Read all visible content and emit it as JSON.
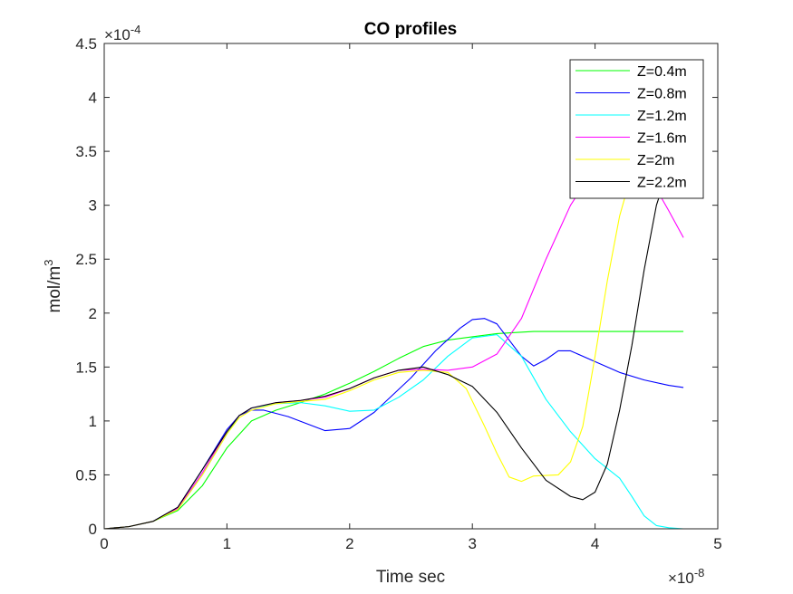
{
  "chart_data": {
    "type": "line",
    "title": "CO profiles",
    "xlabel": "Time sec",
    "ylabel": "mol/m",
    "ylabel_superscript": "3",
    "x_exponent_label": "×10",
    "x_exponent_power": "-8",
    "y_exponent_label": "×10",
    "y_exponent_power": "-4",
    "xlim": [
      0,
      5
    ],
    "ylim": [
      0,
      4.5
    ],
    "x_ticks": [
      0,
      1,
      2,
      3,
      4,
      5
    ],
    "x_tick_labels": [
      "0",
      "1",
      "2",
      "3",
      "4",
      "5"
    ],
    "y_ticks": [
      0,
      0.5,
      1,
      1.5,
      2,
      2.5,
      3,
      3.5,
      4,
      4.5
    ],
    "y_tick_labels": [
      "0",
      "0.5",
      "1",
      "1.5",
      "2",
      "2.5",
      "3",
      "3.5",
      "4",
      "4.5"
    ],
    "grid": false,
    "legend_position": "top-right",
    "series": [
      {
        "name": "Z=0.4m",
        "color": "#00ff00",
        "points": [
          [
            0,
            0
          ],
          [
            0.2,
            0.02
          ],
          [
            0.4,
            0.07
          ],
          [
            0.6,
            0.17
          ],
          [
            0.8,
            0.4
          ],
          [
            1.0,
            0.75
          ],
          [
            1.2,
            1.0
          ],
          [
            1.4,
            1.1
          ],
          [
            1.6,
            1.17
          ],
          [
            1.8,
            1.25
          ],
          [
            2.0,
            1.35
          ],
          [
            2.2,
            1.46
          ],
          [
            2.4,
            1.58
          ],
          [
            2.6,
            1.69
          ],
          [
            2.8,
            1.75
          ],
          [
            3.0,
            1.78
          ],
          [
            3.2,
            1.81
          ],
          [
            3.5,
            1.83
          ],
          [
            4.0,
            1.83
          ],
          [
            4.5,
            1.83
          ],
          [
            4.72,
            1.83
          ]
        ]
      },
      {
        "name": "Z=0.8m",
        "color": "#0000ff",
        "points": [
          [
            0,
            0
          ],
          [
            0.2,
            0.02
          ],
          [
            0.4,
            0.07
          ],
          [
            0.6,
            0.2
          ],
          [
            0.8,
            0.55
          ],
          [
            1.0,
            0.92
          ],
          [
            1.1,
            1.05
          ],
          [
            1.2,
            1.1
          ],
          [
            1.3,
            1.1
          ],
          [
            1.5,
            1.04
          ],
          [
            1.8,
            0.91
          ],
          [
            2.0,
            0.93
          ],
          [
            2.2,
            1.08
          ],
          [
            2.5,
            1.4
          ],
          [
            2.7,
            1.65
          ],
          [
            2.9,
            1.86
          ],
          [
            3.0,
            1.94
          ],
          [
            3.1,
            1.95
          ],
          [
            3.2,
            1.9
          ],
          [
            3.3,
            1.75
          ],
          [
            3.4,
            1.6
          ],
          [
            3.5,
            1.51
          ],
          [
            3.6,
            1.57
          ],
          [
            3.7,
            1.65
          ],
          [
            3.8,
            1.65
          ],
          [
            4.0,
            1.55
          ],
          [
            4.2,
            1.45
          ],
          [
            4.4,
            1.38
          ],
          [
            4.6,
            1.33
          ],
          [
            4.72,
            1.31
          ]
        ]
      },
      {
        "name": "Z=1.2m",
        "color": "#00ffff",
        "points": [
          [
            0,
            0
          ],
          [
            0.2,
            0.02
          ],
          [
            0.4,
            0.07
          ],
          [
            0.6,
            0.18
          ],
          [
            0.8,
            0.5
          ],
          [
            1.0,
            0.88
          ],
          [
            1.1,
            1.05
          ],
          [
            1.2,
            1.12
          ],
          [
            1.4,
            1.16
          ],
          [
            1.6,
            1.17
          ],
          [
            1.8,
            1.14
          ],
          [
            2.0,
            1.09
          ],
          [
            2.2,
            1.1
          ],
          [
            2.4,
            1.22
          ],
          [
            2.6,
            1.38
          ],
          [
            2.8,
            1.6
          ],
          [
            3.0,
            1.77
          ],
          [
            3.2,
            1.8
          ],
          [
            3.4,
            1.6
          ],
          [
            3.6,
            1.2
          ],
          [
            3.8,
            0.9
          ],
          [
            4.0,
            0.65
          ],
          [
            4.2,
            0.47
          ],
          [
            4.3,
            0.3
          ],
          [
            4.4,
            0.12
          ],
          [
            4.5,
            0.03
          ],
          [
            4.6,
            0.01
          ],
          [
            4.72,
            0
          ]
        ]
      },
      {
        "name": "Z=1.6m",
        "color": "#ff00ff",
        "points": [
          [
            0,
            0
          ],
          [
            0.2,
            0.02
          ],
          [
            0.4,
            0.07
          ],
          [
            0.6,
            0.19
          ],
          [
            0.8,
            0.52
          ],
          [
            1.0,
            0.9
          ],
          [
            1.1,
            1.05
          ],
          [
            1.2,
            1.12
          ],
          [
            1.4,
            1.17
          ],
          [
            1.6,
            1.19
          ],
          [
            1.8,
            1.22
          ],
          [
            2.0,
            1.3
          ],
          [
            2.2,
            1.4
          ],
          [
            2.4,
            1.47
          ],
          [
            2.6,
            1.48
          ],
          [
            2.8,
            1.47
          ],
          [
            3.0,
            1.5
          ],
          [
            3.2,
            1.62
          ],
          [
            3.4,
            1.95
          ],
          [
            3.6,
            2.5
          ],
          [
            3.8,
            3.0
          ],
          [
            4.0,
            3.35
          ],
          [
            4.2,
            3.5
          ],
          [
            4.4,
            3.35
          ],
          [
            4.6,
            2.95
          ],
          [
            4.72,
            2.7
          ]
        ]
      },
      {
        "name": "Z=2m",
        "color": "#ffff00",
        "points": [
          [
            0,
            0
          ],
          [
            0.2,
            0.02
          ],
          [
            0.4,
            0.07
          ],
          [
            0.6,
            0.18
          ],
          [
            0.8,
            0.5
          ],
          [
            1.0,
            0.88
          ],
          [
            1.1,
            1.03
          ],
          [
            1.2,
            1.1
          ],
          [
            1.4,
            1.16
          ],
          [
            1.6,
            1.18
          ],
          [
            1.8,
            1.2
          ],
          [
            2.0,
            1.28
          ],
          [
            2.2,
            1.38
          ],
          [
            2.4,
            1.45
          ],
          [
            2.6,
            1.47
          ],
          [
            2.8,
            1.45
          ],
          [
            2.95,
            1.3
          ],
          [
            3.1,
            0.95
          ],
          [
            3.2,
            0.7
          ],
          [
            3.3,
            0.48
          ],
          [
            3.4,
            0.44
          ],
          [
            3.5,
            0.49
          ],
          [
            3.7,
            0.5
          ],
          [
            3.8,
            0.62
          ],
          [
            3.9,
            0.95
          ],
          [
            4.0,
            1.6
          ],
          [
            4.1,
            2.3
          ],
          [
            4.2,
            2.9
          ],
          [
            4.3,
            3.3
          ],
          [
            4.4,
            3.4
          ],
          [
            4.5,
            3.35
          ]
        ]
      },
      {
        "name": "Z=2.2m",
        "color": "#000000",
        "points": [
          [
            0,
            0
          ],
          [
            0.2,
            0.02
          ],
          [
            0.4,
            0.07
          ],
          [
            0.6,
            0.2
          ],
          [
            0.8,
            0.55
          ],
          [
            1.0,
            0.9
          ],
          [
            1.1,
            1.05
          ],
          [
            1.2,
            1.12
          ],
          [
            1.4,
            1.17
          ],
          [
            1.6,
            1.19
          ],
          [
            1.8,
            1.23
          ],
          [
            2.0,
            1.3
          ],
          [
            2.2,
            1.4
          ],
          [
            2.4,
            1.47
          ],
          [
            2.6,
            1.5
          ],
          [
            2.8,
            1.43
          ],
          [
            3.0,
            1.32
          ],
          [
            3.2,
            1.08
          ],
          [
            3.4,
            0.75
          ],
          [
            3.6,
            0.45
          ],
          [
            3.8,
            0.3
          ],
          [
            3.9,
            0.27
          ],
          [
            4.0,
            0.34
          ],
          [
            4.1,
            0.6
          ],
          [
            4.2,
            1.1
          ],
          [
            4.3,
            1.7
          ],
          [
            4.4,
            2.4
          ],
          [
            4.5,
            3.0
          ],
          [
            4.6,
            3.35
          ],
          [
            4.65,
            3.45
          ]
        ]
      }
    ]
  }
}
